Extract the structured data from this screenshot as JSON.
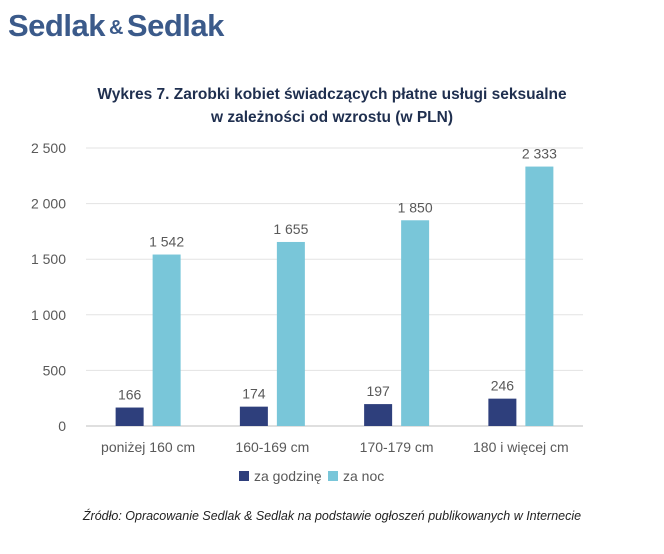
{
  "logo": {
    "part1": "Sedlak",
    "amp": "&",
    "part2": "Sedlak"
  },
  "chart_data": {
    "type": "bar",
    "title_line1": "Wykres 7. Zarobki kobiet świadczących płatne usługi seksualne",
    "title_line2": "w zależności od wzrostu (w PLN)",
    "categories": [
      "poniżej 160 cm",
      "160-169 cm",
      "170-179 cm",
      "180 i więcej cm"
    ],
    "series": [
      {
        "name": "za godzinę",
        "values": [
          166,
          174,
          197,
          246
        ],
        "labels": [
          "166",
          "174",
          "197",
          "246"
        ],
        "color": "#2e3f7c"
      },
      {
        "name": "za noc",
        "values": [
          1542,
          1655,
          1850,
          2333
        ],
        "labels": [
          "1 542",
          "1 655",
          "1 850",
          "2 333"
        ],
        "color": "#79c6d9"
      }
    ],
    "ylim": [
      0,
      2500
    ],
    "yticks": [
      0,
      500,
      1000,
      1500,
      2000,
      2500
    ],
    "ytick_labels": [
      "0",
      "500",
      "1 000",
      "1 500",
      "2 000",
      "2 500"
    ],
    "grid": true,
    "legend_position": "bottom"
  },
  "source": "Źródło: Opracowanie Sedlak & Sedlak na podstawie ogłoszeń publikowanych w Internecie"
}
